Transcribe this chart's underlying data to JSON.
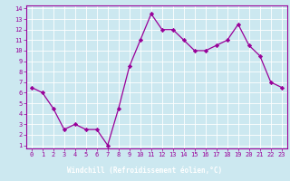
{
  "x": [
    0,
    1,
    2,
    3,
    4,
    5,
    6,
    7,
    8,
    9,
    10,
    11,
    12,
    13,
    14,
    15,
    16,
    17,
    18,
    19,
    20,
    21,
    22,
    23
  ],
  "y": [
    6.5,
    6.0,
    4.5,
    2.5,
    3.0,
    2.5,
    2.5,
    1.0,
    4.5,
    8.5,
    11.0,
    13.5,
    12.0,
    12.0,
    11.0,
    10.0,
    10.0,
    10.5,
    11.0,
    12.5,
    10.5,
    9.5,
    7.0,
    6.5
  ],
  "line_color": "#990099",
  "marker": "D",
  "markersize": 2.2,
  "linewidth": 0.9,
  "bg_color": "#cce8f0",
  "grid_color": "#ffffff",
  "xlabel": "Windchill (Refroidissement éolien,°C)",
  "xlabel_bg": "#990099",
  "xlabel_fg": "#ffffff",
  "tick_color": "#990099",
  "spine_color": "#990099",
  "ylim": [
    1,
    14
  ],
  "xlim": [
    -0.5,
    23.5
  ],
  "yticks": [
    1,
    2,
    3,
    4,
    5,
    6,
    7,
    8,
    9,
    10,
    11,
    12,
    13,
    14
  ],
  "xticks": [
    0,
    1,
    2,
    3,
    4,
    5,
    6,
    7,
    8,
    9,
    10,
    11,
    12,
    13,
    14,
    15,
    16,
    17,
    18,
    19,
    20,
    21,
    22,
    23
  ],
  "tick_fontsize": 5.0,
  "xlabel_fontsize": 5.5
}
